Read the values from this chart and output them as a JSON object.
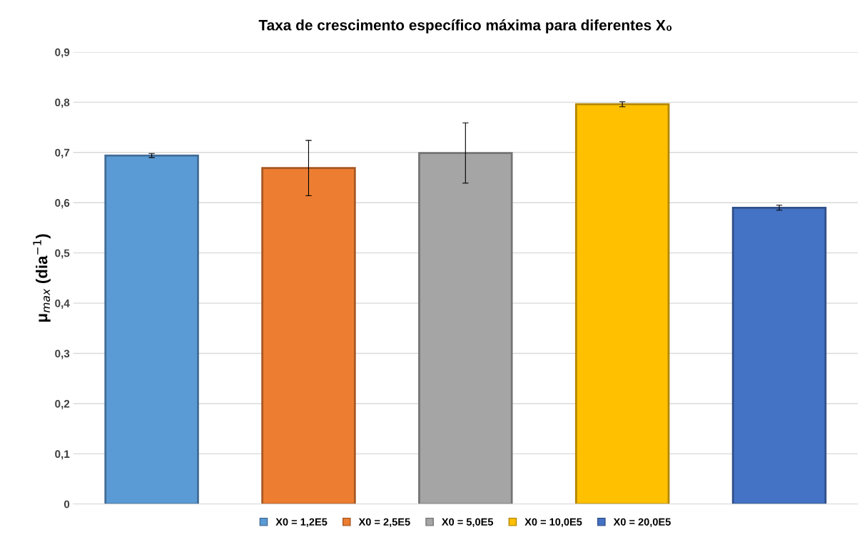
{
  "chart_data": {
    "type": "bar",
    "title": "Taxa de crescimento específico máxima para diferentes X₀",
    "ylabel": "μ$_{max}$ (dia$^{−1}$)",
    "categories": [
      null,
      null,
      null,
      null,
      null
    ],
    "series": [
      {
        "name": "X0 = 1,2E5",
        "color": "#5b9bd5",
        "values": [
          0.694,
          null,
          null,
          null,
          null
        ],
        "errors": [
          0.004,
          null,
          null,
          null,
          null
        ]
      },
      {
        "name": "X0 = 2,5E5",
        "color": "#ed7d31",
        "values": [
          null,
          0.669,
          null,
          null,
          null
        ],
        "errors": [
          null,
          0.055,
          null,
          null,
          null
        ]
      },
      {
        "name": "X0 = 5,0E5",
        "color": "#a5a5a5",
        "values": [
          null,
          null,
          0.699,
          null,
          null
        ],
        "errors": [
          null,
          null,
          0.06,
          null,
          null
        ]
      },
      {
        "name": "X0 = 10,0E5",
        "color": "#ffc000",
        "values": [
          null,
          null,
          null,
          0.796,
          null
        ],
        "errors": [
          null,
          null,
          null,
          0.005,
          null
        ]
      },
      {
        "name": "X0 = 20,0E5",
        "color": "#4472c4",
        "values": [
          null,
          null,
          null,
          null,
          0.59
        ],
        "errors": [
          null,
          null,
          null,
          null,
          0.005
        ]
      }
    ],
    "ylim": [
      0,
      0.9
    ],
    "yticks": [
      0,
      {
        "value": 0.1,
        "label": "0,1"
      },
      {
        "value": 0.2,
        "label": "0,2"
      },
      {
        "value": 0.3,
        "label": "0,3"
      },
      {
        "value": 0.4,
        "label": "0,4"
      },
      {
        "value": 0.5,
        "label": "0,5"
      },
      {
        "value": 0.6,
        "label": "0,6"
      },
      {
        "value": 0.7,
        "label": "0,7"
      },
      {
        "value": 0.8,
        "label": "0,8"
      },
      {
        "value": 0.9,
        "label": "0,9"
      }
    ],
    "grid": "y",
    "legend": "bottom"
  }
}
